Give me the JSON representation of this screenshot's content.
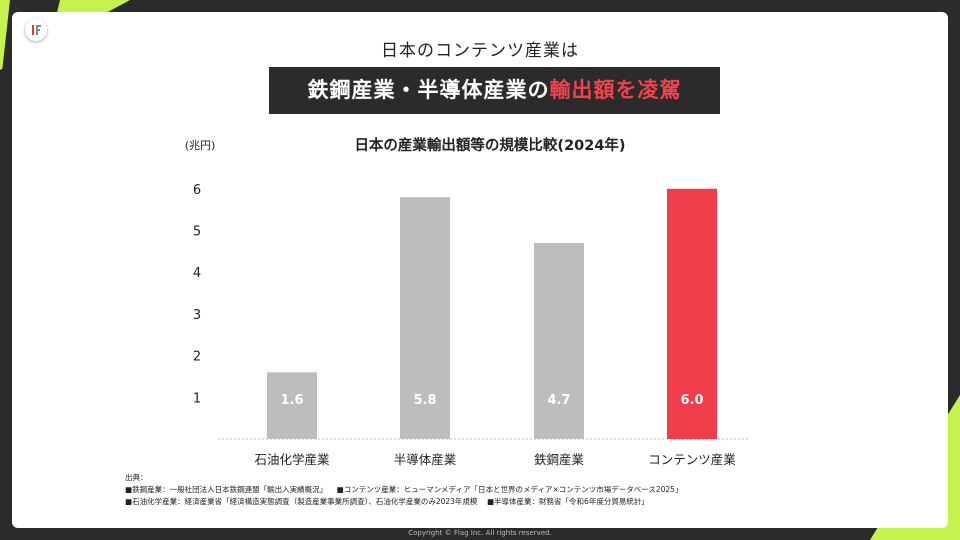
{
  "header": {
    "subtitle": "日本のコンテンツ産業は",
    "headline_prefix": "鉄鋼産業・半導体産業の",
    "headline_highlight": "輸出額を凌駕"
  },
  "chart_data": {
    "type": "bar",
    "title": "日本の産業輸出額等の規模比較(2024年)",
    "ylabel": "(兆円)",
    "categories": [
      "石油化学産業",
      "半導体産業",
      "鉄鋼産業",
      "コンテンツ産業"
    ],
    "values": [
      1.6,
      5.8,
      4.7,
      6.0
    ],
    "value_labels": [
      "1.6",
      "5.8",
      "4.7",
      "6.0"
    ],
    "yticks": [
      "1",
      "2",
      "3",
      "4",
      "5",
      "6"
    ],
    "ylim": [
      0,
      6.6
    ],
    "bar_colors": [
      "#bdbdbd",
      "#bdbdbd",
      "#bdbdbd",
      "#ef3e4a"
    ],
    "grid": false
  },
  "sources": {
    "heading": "出典：",
    "line1a": "■鉄鋼産業：一般社団法人日本鉄鋼連盟「輸出入実績概況」",
    "line1b": "■コンテンツ産業：ヒューマンメディア「日本と世界のメディア×コンテンツ市場データベース2025」",
    "line2a": "■石油化学産業：経済産業省「経済構造実態調査（製造産業事業所調査）、石油化学産業のみ2023年規模",
    "line2b": "■半導体産業：財務省「令和6年度分貿易統計」"
  },
  "footer": {
    "copyright": "Copyright © Flag Inc. All rights reserved."
  },
  "colors": {
    "accent": "#ef3e4a",
    "neon": "#c6f24e",
    "dark": "#2b2b2b"
  }
}
